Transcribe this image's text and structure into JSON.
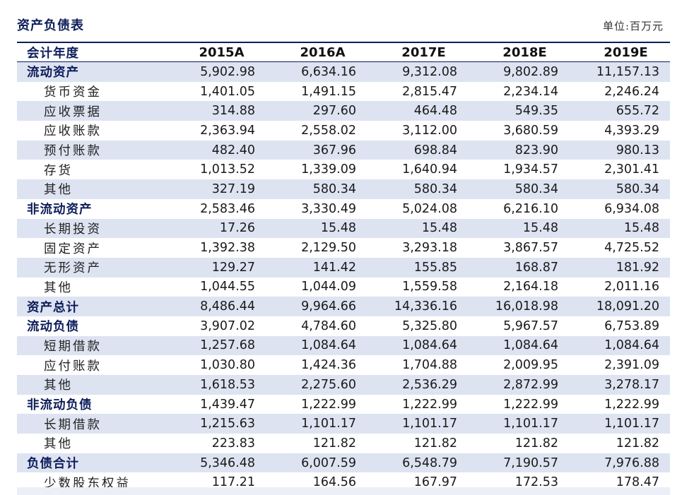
{
  "title": "资产负债表",
  "unit": "单位:百万元",
  "header": {
    "label": "会计年度",
    "years": [
      "2015A",
      "2016A",
      "2017E",
      "2018E",
      "2019E"
    ]
  },
  "rows": [
    {
      "label": "流动资产",
      "type": "bold",
      "values": [
        "5,902.98",
        "6,634.16",
        "9,312.08",
        "9,802.89",
        "11,157.13"
      ]
    },
    {
      "label": "货币资金",
      "type": "sub",
      "values": [
        "1,401.05",
        "1,491.15",
        "2,815.47",
        "2,234.14",
        "2,246.24"
      ]
    },
    {
      "label": "应收票据",
      "type": "sub",
      "values": [
        "314.88",
        "297.60",
        "464.48",
        "549.35",
        "655.72"
      ]
    },
    {
      "label": "应收账款",
      "type": "sub",
      "values": [
        "2,363.94",
        "2,558.02",
        "3,112.00",
        "3,680.59",
        "4,393.29"
      ]
    },
    {
      "label": "预付账款",
      "type": "sub",
      "values": [
        "482.40",
        "367.96",
        "698.84",
        "823.90",
        "980.13"
      ]
    },
    {
      "label": "存货",
      "type": "sub",
      "values": [
        "1,013.52",
        "1,339.09",
        "1,640.94",
        "1,934.57",
        "2,301.41"
      ]
    },
    {
      "label": "其他",
      "type": "sub",
      "values": [
        "327.19",
        "580.34",
        "580.34",
        "580.34",
        "580.34"
      ]
    },
    {
      "label": "非流动资产",
      "type": "bold",
      "values": [
        "2,583.46",
        "3,330.49",
        "5,024.08",
        "6,216.10",
        "6,934.08"
      ]
    },
    {
      "label": "长期投资",
      "type": "sub",
      "values": [
        "17.26",
        "15.48",
        "15.48",
        "15.48",
        "15.48"
      ]
    },
    {
      "label": "固定资产",
      "type": "sub",
      "values": [
        "1,392.38",
        "2,129.50",
        "3,293.18",
        "3,867.57",
        "4,725.52"
      ]
    },
    {
      "label": "无形资产",
      "type": "sub",
      "values": [
        "129.27",
        "141.42",
        "155.85",
        "168.87",
        "181.92"
      ]
    },
    {
      "label": "其他",
      "type": "sub",
      "values": [
        "1,044.55",
        "1,044.09",
        "1,559.58",
        "2,164.18",
        "2,011.16"
      ]
    },
    {
      "label": "资产总计",
      "type": "bold",
      "values": [
        "8,486.44",
        "9,964.66",
        "14,336.16",
        "16,018.98",
        "18,091.20"
      ]
    },
    {
      "label": "流动负债",
      "type": "bold",
      "values": [
        "3,907.02",
        "4,784.60",
        "5,325.80",
        "5,967.57",
        "6,753.89"
      ]
    },
    {
      "label": "短期借款",
      "type": "sub",
      "values": [
        "1,257.68",
        "1,084.64",
        "1,084.64",
        "1,084.64",
        "1,084.64"
      ]
    },
    {
      "label": "应付账款",
      "type": "sub",
      "values": [
        "1,030.80",
        "1,424.36",
        "1,704.88",
        "2,009.95",
        "2,391.09"
      ]
    },
    {
      "label": "其他",
      "type": "sub",
      "values": [
        "1,618.53",
        "2,275.60",
        "2,536.29",
        "2,872.99",
        "3,278.17"
      ]
    },
    {
      "label": "非流动负债",
      "type": "bold",
      "values": [
        "1,439.47",
        "1,222.99",
        "1,222.99",
        "1,222.99",
        "1,222.99"
      ]
    },
    {
      "label": "长期借款",
      "type": "sub",
      "values": [
        "1,215.63",
        "1,101.17",
        "1,101.17",
        "1,101.17",
        "1,101.17"
      ]
    },
    {
      "label": "其他",
      "type": "sub",
      "values": [
        "223.83",
        "121.82",
        "121.82",
        "121.82",
        "121.82"
      ]
    },
    {
      "label": "负债合计",
      "type": "bold",
      "values": [
        "5,346.48",
        "6,007.59",
        "6,548.79",
        "7,190.57",
        "7,976.88"
      ]
    },
    {
      "label": "少数股东权益",
      "type": "sub",
      "values": [
        "117.21",
        "164.56",
        "167.97",
        "172.53",
        "178.47"
      ]
    }
  ]
}
